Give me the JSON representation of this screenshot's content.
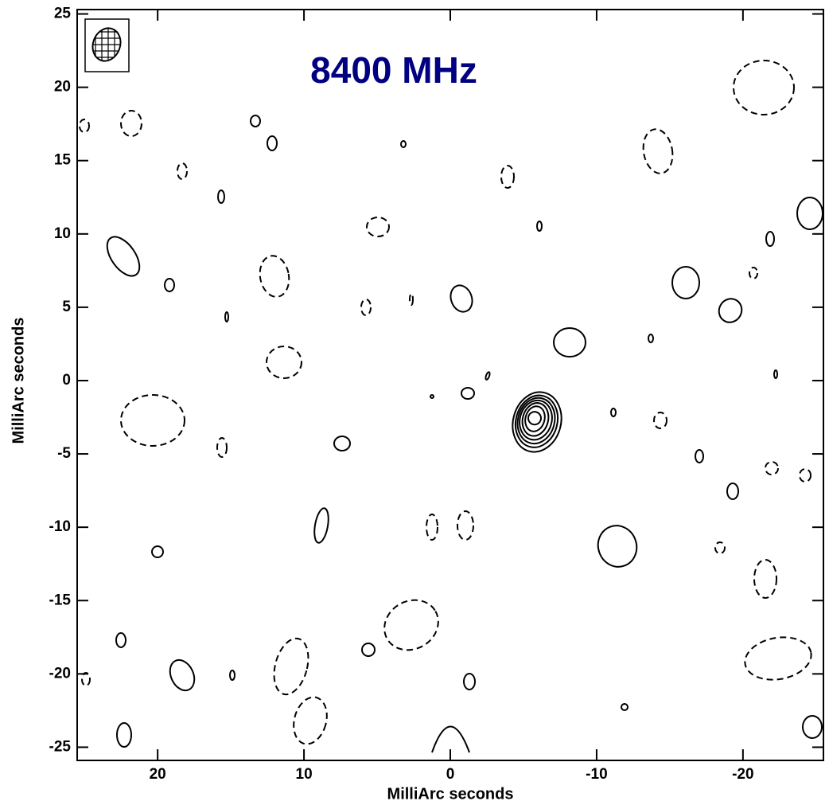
{
  "chart_data": {
    "type": "contour",
    "title": "8400 MHz",
    "x_label": "MilliArc seconds",
    "y_label": "MilliArc seconds",
    "xlim": [
      25.5,
      -25.5
    ],
    "ylim": [
      -25.9,
      25.3
    ],
    "xticks": [
      20,
      10,
      0,
      -10,
      -20
    ],
    "yticks": [
      25,
      20,
      15,
      10,
      5,
      0,
      -5,
      -10,
      -15,
      -20,
      -25
    ],
    "title_color": "#000080",
    "color": "#000000"
  }
}
